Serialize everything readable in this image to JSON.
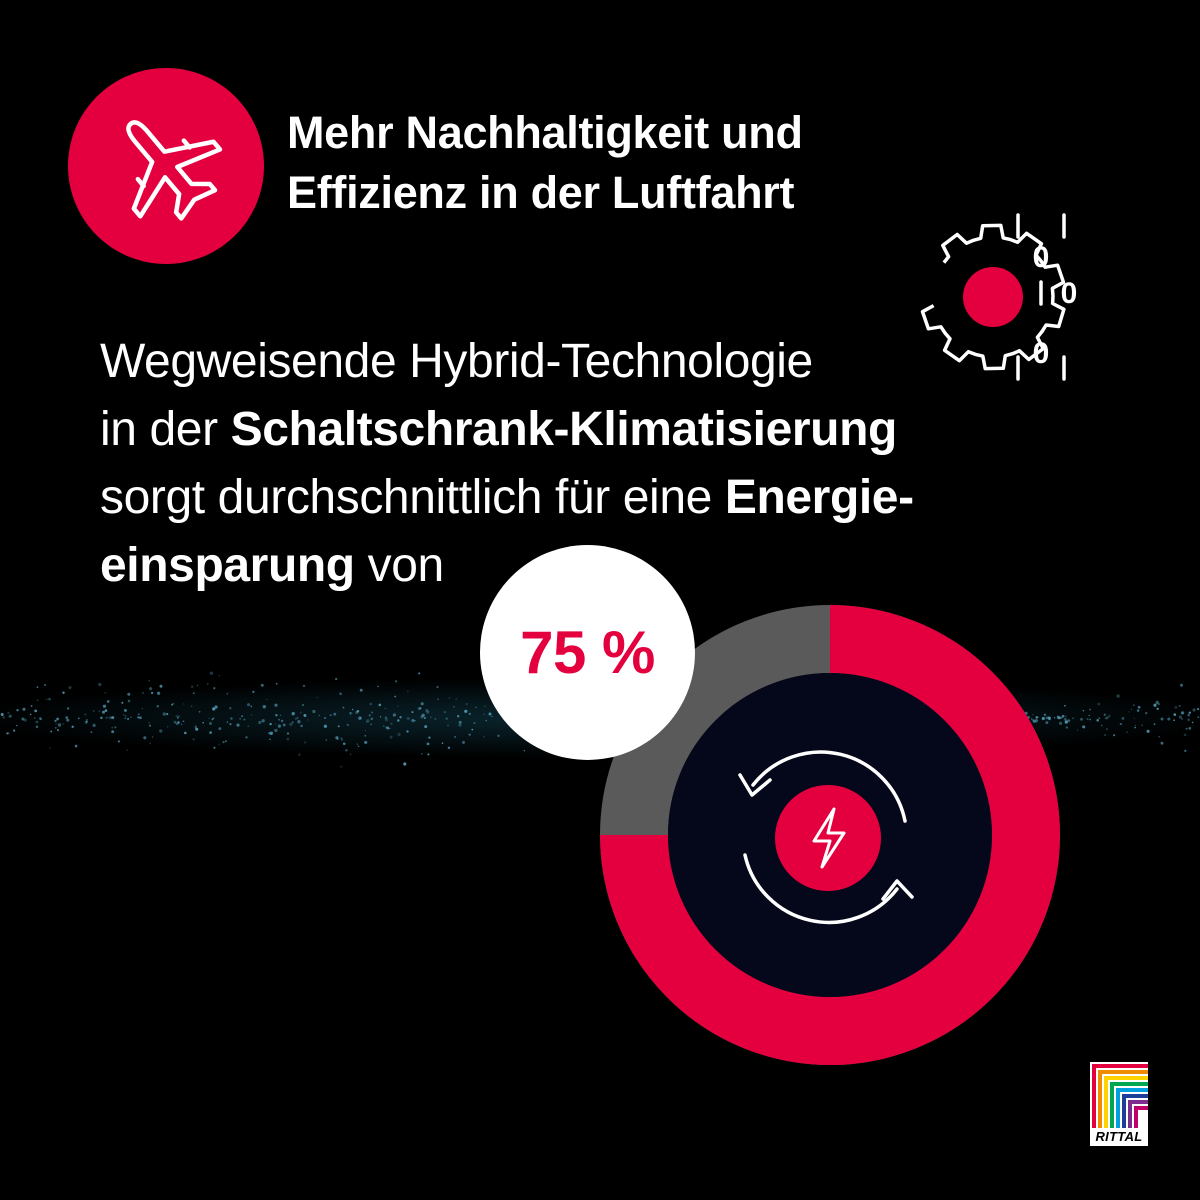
{
  "headline": {
    "line1": "Mehr Nachhaltigkeit und",
    "line2": "Effizienz in der Luftfahrt"
  },
  "body": {
    "line1": "Wegweisende Hybrid-Technologie",
    "line2_regular": "in der ",
    "line2_bold": "Schaltschrank-Klimatisierung",
    "line3_regular": "sorgt durchschnittlich für eine ",
    "line3_bold": "Energie-",
    "line4_bold": "einsparung",
    "line4_regular": " von"
  },
  "stat": {
    "label": "75 %",
    "fraction": 0.75
  },
  "binary": {
    "digit_top": "0",
    "digit_mid": "0",
    "digit_bottom": "0"
  },
  "logo": {
    "text": "RITTAL"
  },
  "colors": {
    "background": "#000000",
    "accent": "#e4003e",
    "donut_remainder": "#5a5a5a",
    "donut_inner": "#05071a",
    "glow": "#1e6f8a"
  },
  "icons": [
    "airplane-icon",
    "gear-icon",
    "binary-digits-icon",
    "refresh-icon",
    "lightning-icon",
    "rittal-logo"
  ]
}
